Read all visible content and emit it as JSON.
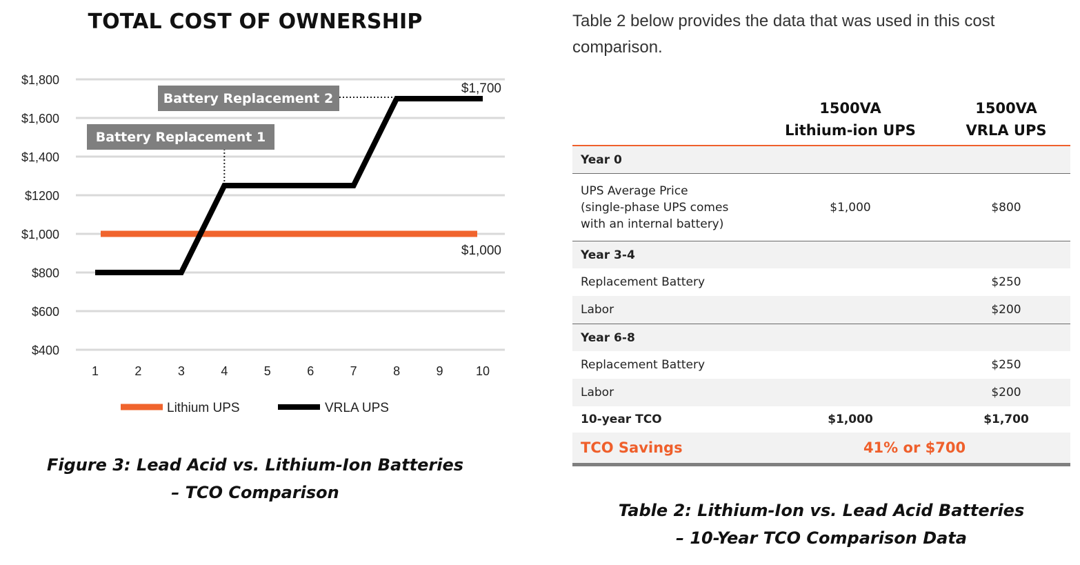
{
  "chart_data": {
    "type": "line",
    "title": "TOTAL COST OF OWNERSHIP",
    "x": [
      1,
      2,
      3,
      4,
      5,
      6,
      7,
      8,
      9,
      10
    ],
    "ylim": [
      400,
      1800
    ],
    "ytick_labels": [
      "$1,800",
      "$1,600",
      "$1,400",
      "$1200",
      "$1,000",
      "$800",
      "$600",
      "$400"
    ],
    "xtick_labels": [
      "1",
      "2",
      "3",
      "4",
      "5",
      "6",
      "7",
      "8",
      "9",
      "10"
    ],
    "series": [
      {
        "name": "Lithium UPS",
        "color": "#f0642d",
        "values": [
          1000,
          1000,
          1000,
          1000,
          1000,
          1000,
          1000,
          1000,
          1000,
          1000
        ]
      },
      {
        "name": "VRLA UPS",
        "color": "#000000",
        "values": [
          800,
          800,
          800,
          1250,
          1250,
          1250,
          1250,
          1700,
          1700,
          1700
        ]
      }
    ],
    "annotations": [
      {
        "text": "Battery Replacement 1",
        "x": 4,
        "y": 1250
      },
      {
        "text": "Battery Replacement 2",
        "x": 8,
        "y": 1700
      }
    ],
    "end_labels": [
      "$1,700",
      "$1,000"
    ],
    "grid": true,
    "legend_position": "bottom"
  },
  "figure_caption": {
    "line1": "Figure 3: Lead Acid vs. Lithium-Ion Batteries",
    "line2": "– TCO Comparison"
  },
  "intro_text": "Table 2 below provides the data that was used in this cost comparison.",
  "table": {
    "col1_header": {
      "line1": "1500VA",
      "line2": "Lithium-ion UPS"
    },
    "col2_header": {
      "line1": "1500VA",
      "line2": "VRLA UPS"
    },
    "year0": "Year 0",
    "ups_price": {
      "label_line1": "UPS Average Price",
      "label_line2": "(single-phase UPS comes",
      "label_line3": "with an internal battery)",
      "li": "$1,000",
      "vrla": "$800"
    },
    "year34": "Year 3-4",
    "y34_battery": {
      "label": "Replacement Battery",
      "vrla": "$250"
    },
    "y34_labor": {
      "label": "Labor",
      "vrla": "$200"
    },
    "year68": "Year 6-8",
    "y68_battery": {
      "label": "Replacement Battery",
      "vrla": "$250"
    },
    "y68_labor": {
      "label": "Labor",
      "vrla": "$200"
    },
    "total": {
      "label": "10-year TCO",
      "li": "$1,000",
      "vrla": "$1,700"
    },
    "savings": {
      "label": "TCO Savings",
      "value": "41% or $700"
    }
  },
  "table_caption": {
    "line1": "Table 2: Lithium-Ion vs. Lead Acid Batteries",
    "line2": "– 10-Year TCO Comparison Data"
  }
}
